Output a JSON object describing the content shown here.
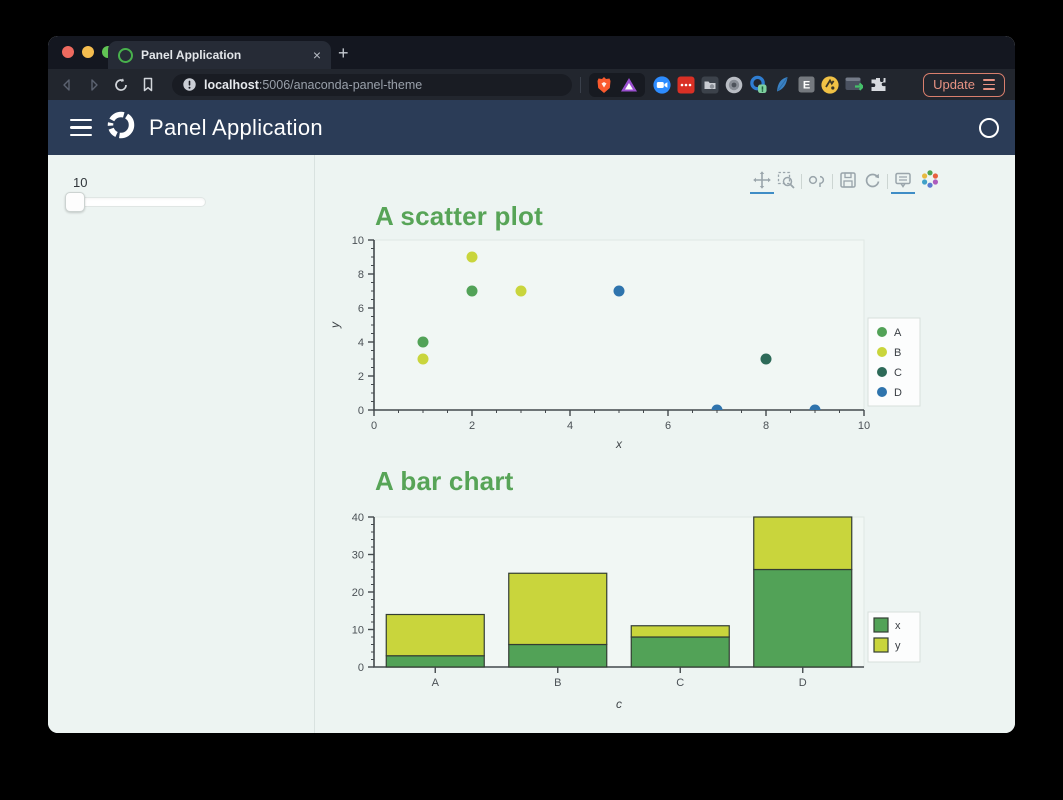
{
  "browser": {
    "tab_title": "Panel Application",
    "url_host": "localhost",
    "url_path": ":5006/anaconda-panel-theme",
    "update_label": "Update"
  },
  "app_header": {
    "title": "Panel Application"
  },
  "sidebar": {
    "slider_value": "10"
  },
  "bokeh_toolbar": {
    "tools": [
      {
        "name": "pan",
        "active": true
      },
      {
        "name": "box-zoom",
        "active": false
      },
      {
        "name": "wheel-zoom",
        "active": false
      },
      {
        "name": "save",
        "active": false
      },
      {
        "name": "reset",
        "active": false
      },
      {
        "name": "hover",
        "active": true
      }
    ]
  },
  "icons": {
    "close": "×",
    "new_tab": "+",
    "traffic_lights": [
      "#ee6a5f",
      "#f5bd4f",
      "#61c454"
    ]
  },
  "colors": {
    "header_navy": "#2b3c57",
    "page_bg": "#edf4f2",
    "title_green": "#57a457",
    "active_tool_blue": "#3f8dc6",
    "update_coral": "#e8897a",
    "axis_line": "#43494c",
    "tick_label": "#4b5156",
    "plot_bg": "#f1f7f4",
    "plot_outline": "#e0e7e4",
    "legend_bg": "#fcfdfd",
    "legend_border": "#d7dfdc"
  },
  "chart_data": [
    {
      "type": "scatter",
      "title": "A scatter plot",
      "xlabel": "x",
      "ylabel": "y",
      "xlim": [
        0,
        10
      ],
      "ylim": [
        0,
        10
      ],
      "xticks": [
        0,
        2,
        4,
        6,
        8,
        10
      ],
      "yticks": [
        0,
        2,
        4,
        6,
        8,
        10
      ],
      "minor_tick_step": 0.5,
      "grid": false,
      "legend_position": "right",
      "series": [
        {
          "name": "A",
          "color": "#52a257",
          "points": [
            [
              1,
              4
            ],
            [
              2,
              7
            ]
          ]
        },
        {
          "name": "B",
          "color": "#c9d53c",
          "points": [
            [
              1,
              3
            ],
            [
              2,
              9
            ],
            [
              3,
              7
            ]
          ]
        },
        {
          "name": "C",
          "color": "#2d6a58",
          "points": [
            [
              8,
              3
            ]
          ]
        },
        {
          "name": "D",
          "color": "#2f74ad",
          "points": [
            [
              5,
              7
            ],
            [
              7,
              0
            ],
            [
              9,
              0
            ]
          ]
        }
      ]
    },
    {
      "type": "bar",
      "title": "A bar chart",
      "xlabel": "c",
      "ylabel": "",
      "categories": [
        "A",
        "B",
        "C",
        "D"
      ],
      "ylim": [
        0,
        40
      ],
      "yticks": [
        0,
        10,
        20,
        30,
        40
      ],
      "minor_tick_step": 2,
      "stacked": true,
      "grid": false,
      "legend_position": "right",
      "bar_outline": "#333d33",
      "series": [
        {
          "name": "x",
          "color": "#52a257",
          "values": [
            3,
            6,
            8,
            26
          ]
        },
        {
          "name": "y",
          "color": "#c9d53c",
          "values": [
            11,
            19,
            3,
            14
          ]
        }
      ],
      "totals": [
        14,
        25,
        11,
        40
      ]
    }
  ]
}
